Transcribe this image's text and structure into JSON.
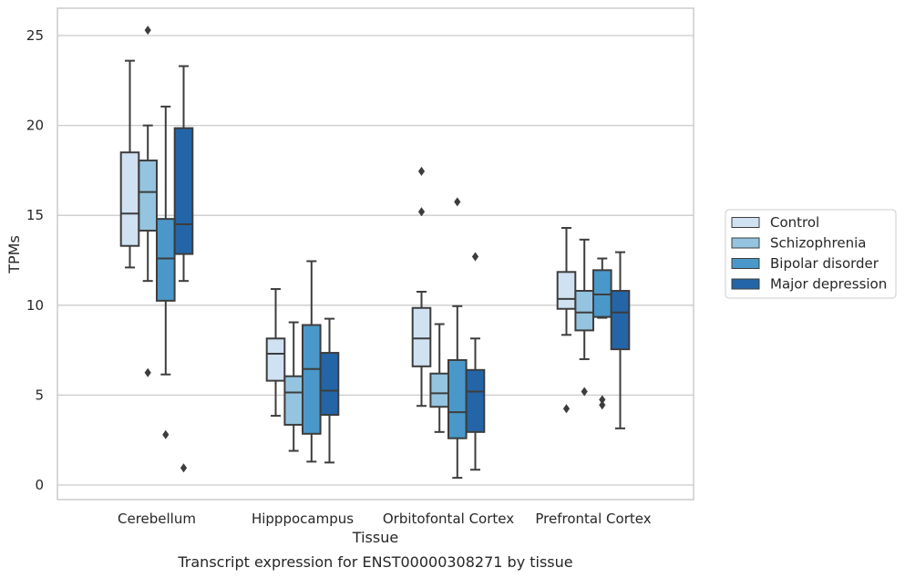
{
  "chart_data": {
    "type": "box",
    "title": "Transcript expression for ENST00000308271 by tissue",
    "xlabel": "Tissue",
    "ylabel": "TPMs",
    "ylim": [
      -0.4,
      26.2
    ],
    "yticks": [
      0,
      5,
      10,
      15,
      20,
      25
    ],
    "grid": "horizontal",
    "legend_position": "right",
    "categories": [
      "Cerebellum",
      "Hipppocampus",
      "Orbitofontal Cortex",
      "Prefrontal Cortex"
    ],
    "series": [
      {
        "name": "Control",
        "color": "#d0e1f2",
        "boxes": [
          {
            "whislo": 12.1,
            "q1": 13.3,
            "med": 15.1,
            "q3": 18.5,
            "whishi": 23.6,
            "fliers": []
          },
          {
            "whislo": 3.85,
            "q1": 5.8,
            "med": 7.3,
            "q3": 8.15,
            "whishi": 10.9,
            "fliers": []
          },
          {
            "whislo": 4.4,
            "q1": 6.6,
            "med": 8.15,
            "q3": 9.85,
            "whishi": 10.75,
            "fliers": [
              15.2,
              17.45
            ]
          },
          {
            "whislo": 8.35,
            "q1": 9.8,
            "med": 10.35,
            "q3": 11.85,
            "whishi": 14.3,
            "fliers": [
              4.25
            ]
          }
        ]
      },
      {
        "name": "Schizophrenia",
        "color": "#94c4df",
        "boxes": [
          {
            "whislo": 11.35,
            "q1": 14.15,
            "med": 16.3,
            "q3": 18.05,
            "whishi": 20.0,
            "fliers": [
              6.25,
              25.3
            ]
          },
          {
            "whislo": 1.9,
            "q1": 3.35,
            "med": 5.15,
            "q3": 6.05,
            "whishi": 9.05,
            "fliers": []
          },
          {
            "whislo": 2.95,
            "q1": 4.35,
            "med": 5.1,
            "q3": 6.2,
            "whishi": 8.95,
            "fliers": []
          },
          {
            "whislo": 7.0,
            "q1": 8.6,
            "med": 9.6,
            "q3": 10.8,
            "whishi": 13.65,
            "fliers": [
              5.2
            ]
          }
        ]
      },
      {
        "name": "Bipolar disorder",
        "color": "#4a98c9",
        "boxes": [
          {
            "whislo": 6.15,
            "q1": 10.25,
            "med": 12.6,
            "q3": 14.8,
            "whishi": 21.05,
            "fliers": [
              2.8
            ]
          },
          {
            "whislo": 1.3,
            "q1": 2.85,
            "med": 6.45,
            "q3": 8.9,
            "whishi": 12.45,
            "fliers": []
          },
          {
            "whislo": 0.4,
            "q1": 2.6,
            "med": 4.05,
            "q3": 6.95,
            "whishi": 9.95,
            "fliers": [
              15.75
            ]
          },
          {
            "whislo": 9.3,
            "q1": 9.35,
            "med": 10.6,
            "q3": 11.95,
            "whishi": 12.6,
            "fliers": [
              4.45,
              4.75
            ]
          }
        ]
      },
      {
        "name": "Major depression",
        "color": "#2465a8",
        "boxes": [
          {
            "whislo": 11.35,
            "q1": 12.85,
            "med": 14.5,
            "q3": 19.85,
            "whishi": 23.3,
            "fliers": [
              0.95
            ]
          },
          {
            "whislo": 1.25,
            "q1": 3.9,
            "med": 5.25,
            "q3": 7.35,
            "whishi": 9.25,
            "fliers": []
          },
          {
            "whislo": 0.85,
            "q1": 2.95,
            "med": 5.2,
            "q3": 6.4,
            "whishi": 8.15,
            "fliers": [
              12.7
            ]
          },
          {
            "whislo": 3.15,
            "q1": 7.55,
            "med": 9.6,
            "q3": 10.8,
            "whishi": 12.95,
            "fliers": []
          }
        ]
      }
    ]
  }
}
